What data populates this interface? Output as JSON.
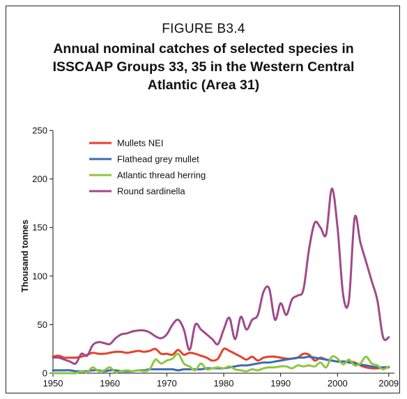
{
  "figure": {
    "label": "FIGURE B3.4",
    "title": "Annual nominal catches of selected species in ISSCAAP Groups 33, 35 in the Western Central Atlantic (Area 31)"
  },
  "chart_data": {
    "type": "line",
    "title": "Annual nominal catches of selected species in ISSCAAP Groups 33, 35 in the Western Central Atlantic (Area 31)",
    "xlabel": "",
    "ylabel": "Thousand tonnes",
    "xlim": [
      1950,
      2010
    ],
    "ylim": [
      0,
      250
    ],
    "xticks": [
      "1950",
      "1960",
      "1970",
      "1980",
      "1990",
      "2000",
      "2009"
    ],
    "yticks": [
      "0",
      "50",
      "100",
      "150",
      "200",
      "250"
    ],
    "legend_position": "top-left",
    "grid": false,
    "x": [
      1950,
      1951,
      1952,
      1953,
      1954,
      1955,
      1956,
      1957,
      1958,
      1959,
      1960,
      1961,
      1962,
      1963,
      1964,
      1965,
      1966,
      1967,
      1968,
      1969,
      1970,
      1971,
      1972,
      1973,
      1974,
      1975,
      1976,
      1977,
      1978,
      1979,
      1980,
      1981,
      1982,
      1983,
      1984,
      1985,
      1986,
      1987,
      1988,
      1989,
      1990,
      1991,
      1992,
      1993,
      1994,
      1995,
      1996,
      1997,
      1998,
      1999,
      2000,
      2001,
      2002,
      2003,
      2004,
      2005,
      2006,
      2007,
      2008,
      2009
    ],
    "series": [
      {
        "name": "Mullets NEI",
        "color": "#e8402c",
        "values": [
          17,
          18,
          16,
          16,
          16,
          17,
          19,
          21,
          20,
          20,
          21,
          22,
          22,
          21,
          22,
          23,
          22,
          23,
          25,
          20,
          20,
          19,
          24,
          19,
          21,
          20,
          18,
          16,
          13,
          15,
          25,
          23,
          20,
          17,
          14,
          17,
          13,
          16,
          17,
          17,
          16,
          15,
          15,
          16,
          20,
          19,
          13,
          16,
          14,
          13,
          12,
          12,
          12,
          11,
          8,
          6,
          5,
          5,
          6,
          6
        ]
      },
      {
        "name": "Flathead grey mullet",
        "color": "#3a6bb5",
        "values": [
          3,
          3,
          3,
          3,
          2,
          2,
          2,
          3,
          3,
          2,
          3,
          3,
          2,
          2,
          2,
          3,
          3,
          4,
          4,
          4,
          4,
          4,
          3,
          4,
          4,
          4,
          4,
          5,
          5,
          5,
          5,
          6,
          7,
          8,
          8,
          9,
          10,
          11,
          11,
          12,
          13,
          14,
          15,
          16,
          16,
          17,
          16,
          15,
          14,
          13,
          12,
          12,
          11,
          10,
          9,
          8,
          7,
          6,
          6,
          6
        ]
      },
      {
        "name": "Atlantic thread herring",
        "color": "#8dc63f",
        "values": [
          0,
          0,
          0,
          0,
          0,
          2,
          1,
          6,
          2,
          3,
          6,
          1,
          2,
          3,
          2,
          3,
          2,
          4,
          14,
          10,
          13,
          15,
          20,
          10,
          7,
          3,
          10,
          4,
          5,
          6,
          5,
          7,
          4,
          3,
          2,
          4,
          3,
          5,
          6,
          6,
          7,
          7,
          5,
          8,
          7,
          8,
          7,
          11,
          6,
          17,
          15,
          9,
          14,
          8,
          10,
          17,
          10,
          8,
          4,
          7
        ]
      },
      {
        "name": "Round sardinella",
        "color": "#a0498a",
        "values": [
          16,
          16,
          14,
          12,
          10,
          20,
          18,
          29,
          32,
          31,
          30,
          36,
          40,
          41,
          43,
          44,
          44,
          42,
          38,
          36,
          40,
          50,
          55,
          45,
          24,
          50,
          45,
          40,
          35,
          30,
          45,
          57,
          35,
          58,
          45,
          55,
          60,
          84,
          87,
          55,
          72,
          60,
          76,
          80,
          86,
          128,
          155,
          150,
          143,
          190,
          150,
          80,
          75,
          160,
          135,
          115,
          95,
          75,
          37,
          37
        ]
      }
    ]
  }
}
